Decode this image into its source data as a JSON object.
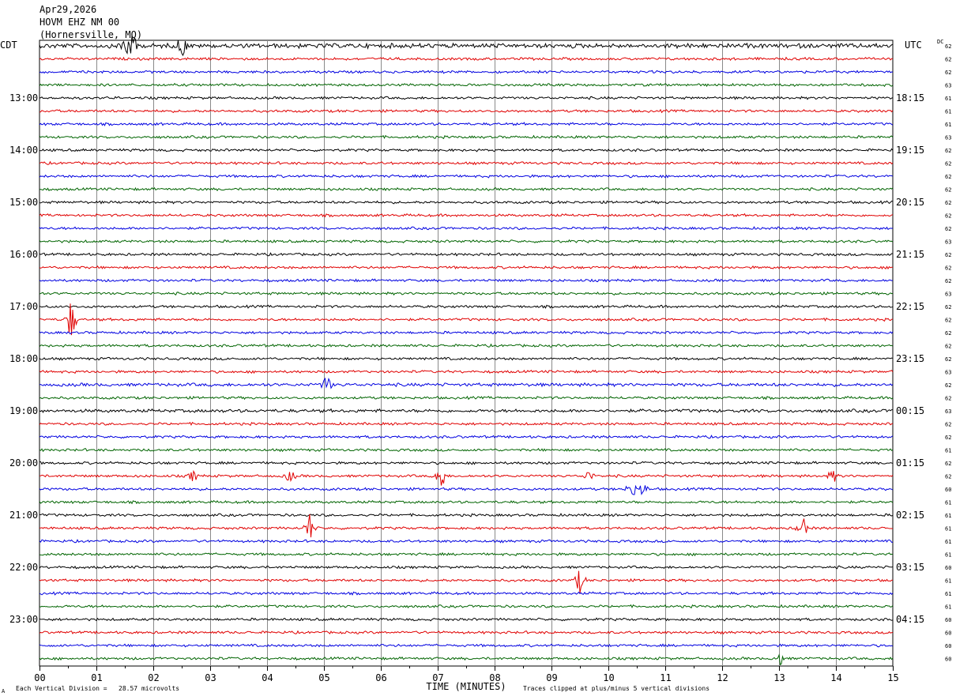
{
  "header": {
    "date": "Apr29,2026",
    "station": "HOVM EHZ NM 00",
    "location": "(Hornersville, MO)"
  },
  "footer": {
    "scale_note": "Each Vertical Division =   28.57 microvolts",
    "clip_note": "Traces clipped at plus/minus 5 vertical divisions",
    "corner_mark": "A"
  },
  "chart_data": {
    "type": "line",
    "title": "Apr29,2026 HOVM EHZ NM 00 (Hornersville, MO)",
    "xlabel": "TIME (MINUTES)",
    "xlim": [
      0,
      15
    ],
    "x_ticks": [
      "00",
      "01",
      "02",
      "03",
      "04",
      "05",
      "06",
      "07",
      "08",
      "09",
      "10",
      "11",
      "12",
      "13",
      "14",
      "15"
    ],
    "left_axis_label": "CDT",
    "right_axis_label": "UTC",
    "dc_label": "DC",
    "trace_colors": [
      "#000000",
      "#e00000",
      "#0000e0",
      "#006400"
    ],
    "trace_interval_minutes": 15,
    "left_time_labels": [
      {
        "trace": 4,
        "label": "13:00"
      },
      {
        "trace": 8,
        "label": "14:00"
      },
      {
        "trace": 12,
        "label": "15:00"
      },
      {
        "trace": 16,
        "label": "16:00"
      },
      {
        "trace": 20,
        "label": "17:00"
      },
      {
        "trace": 24,
        "label": "18:00"
      },
      {
        "trace": 28,
        "label": "19:00"
      },
      {
        "trace": 32,
        "label": "20:00"
      },
      {
        "trace": 36,
        "label": "21:00"
      },
      {
        "trace": 40,
        "label": "22:00"
      },
      {
        "trace": 44,
        "label": "23:00"
      }
    ],
    "right_time_labels": [
      {
        "trace": 4,
        "label": "18:15"
      },
      {
        "trace": 8,
        "label": "19:15"
      },
      {
        "trace": 12,
        "label": "20:15"
      },
      {
        "trace": 16,
        "label": "21:15"
      },
      {
        "trace": 20,
        "label": "22:15"
      },
      {
        "trace": 24,
        "label": "23:15"
      },
      {
        "trace": 28,
        "label": "00:15"
      },
      {
        "trace": 32,
        "label": "01:15"
      },
      {
        "trace": 36,
        "label": "02:15"
      },
      {
        "trace": 40,
        "label": "03:15"
      },
      {
        "trace": 44,
        "label": "04:15"
      }
    ],
    "dc_values": [
      62,
      62,
      62,
      63,
      61,
      61,
      61,
      63,
      62,
      62,
      62,
      62,
      62,
      62,
      62,
      63,
      62,
      62,
      62,
      63,
      62,
      62,
      62,
      62,
      62,
      63,
      62,
      62,
      63,
      62,
      62,
      61,
      62,
      62,
      60,
      61,
      61,
      61,
      61,
      61,
      60,
      61,
      61,
      61,
      60,
      60,
      60,
      60
    ],
    "events": [
      {
        "trace": 0,
        "minute": 1.5,
        "amplitude": 1.8
      },
      {
        "trace": 0,
        "minute": 1.65,
        "amplitude": 1.5
      },
      {
        "trace": 0,
        "minute": 2.5,
        "amplitude": 1.4
      },
      {
        "trace": 21,
        "minute": 0.55,
        "amplitude": 2.8
      },
      {
        "trace": 26,
        "minute": 5.05,
        "amplitude": 1.2
      },
      {
        "trace": 33,
        "minute": 2.7,
        "amplitude": 0.7
      },
      {
        "trace": 33,
        "minute": 4.4,
        "amplitude": 0.8
      },
      {
        "trace": 33,
        "minute": 7.05,
        "amplitude": 2.2
      },
      {
        "trace": 33,
        "minute": 9.65,
        "amplitude": 0.7
      },
      {
        "trace": 33,
        "minute": 13.95,
        "amplitude": 0.8
      },
      {
        "trace": 34,
        "minute": 10.4,
        "amplitude": 1.2
      },
      {
        "trace": 34,
        "minute": 10.6,
        "amplitude": 0.9
      },
      {
        "trace": 37,
        "minute": 4.75,
        "amplitude": 2.0
      },
      {
        "trace": 37,
        "minute": 13.4,
        "amplitude": 1.7
      },
      {
        "trace": 41,
        "minute": 9.5,
        "amplitude": 1.6
      },
      {
        "trace": 47,
        "minute": 13.0,
        "amplitude": 1.0
      }
    ]
  }
}
